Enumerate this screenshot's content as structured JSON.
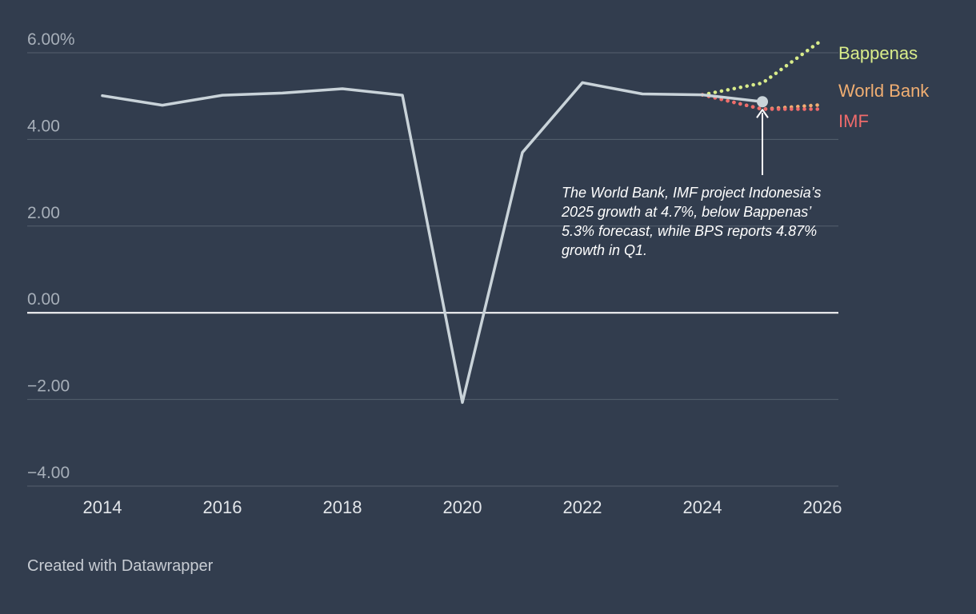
{
  "chart_data": {
    "type": "line",
    "title": "",
    "xlabel": "",
    "ylabel": "",
    "xlim": [
      2014,
      2026
    ],
    "ylim": [
      -4,
      6
    ],
    "x_ticks": [
      "2014",
      "2016",
      "2018",
      "2020",
      "2022",
      "2024",
      "2026"
    ],
    "y_ticks": [
      {
        "value": 6,
        "label": "6.00%"
      },
      {
        "value": 4,
        "label": "4.00"
      },
      {
        "value": 2,
        "label": "2.00"
      },
      {
        "value": 0,
        "label": "0.00"
      },
      {
        "value": -2,
        "label": "−2.00"
      },
      {
        "value": -4,
        "label": "−4.00"
      }
    ],
    "grid": true,
    "series": [
      {
        "color": "#c9d3d9",
        "style": "solid",
        "x": [
          2014,
          2015,
          2016,
          2017,
          2018,
          2019,
          2020,
          2021,
          2022,
          2023,
          2024,
          2025
        ],
        "values": [
          5.01,
          4.79,
          5.02,
          5.07,
          5.17,
          5.02,
          -2.07,
          3.7,
          5.31,
          5.05,
          5.03,
          4.87
        ]
      },
      {
        "name": "Bappenas",
        "color": "#d9ec8a",
        "style": "dotted",
        "x": [
          2024,
          2025,
          2026
        ],
        "values": [
          5.03,
          5.3,
          6.3
        ]
      },
      {
        "name": "World Bank",
        "color": "#f0ae72",
        "style": "dotted",
        "x": [
          2024,
          2025,
          2026
        ],
        "values": [
          5.03,
          4.7,
          4.8
        ]
      },
      {
        "name": "IMF",
        "color": "#ef6b6b",
        "style": "dotted",
        "x": [
          2024,
          2025,
          2026
        ],
        "values": [
          5.03,
          4.7,
          4.7
        ]
      }
    ],
    "highlight_point": {
      "x": 2025,
      "value": 4.87
    },
    "annotation": "The World Bank, IMF project Indonesia’s 2025 growth at 4.7%, below Bappenas’ 5.3% forecast, while BPS reports 4.87% growth in Q1."
  },
  "footer": "Created with Datawrapper"
}
